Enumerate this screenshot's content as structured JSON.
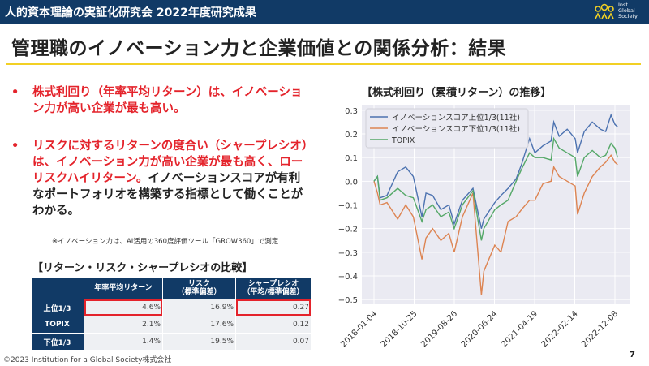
{
  "header": {
    "title": "人的資本理論の実証化研究会 2022年度研究成果",
    "logo_text": [
      "Inst.",
      "Global",
      "Society"
    ]
  },
  "slide": {
    "title": "管理職のイノベーション力と企業価値との関係分析：結果",
    "page_number": "7"
  },
  "bullets": [
    {
      "red": "株式利回り（年率平均リターン）は、イノベーション力が高い企業が最も高い。",
      "black": ""
    },
    {
      "red": "リスクに対するリターンの度合い（シャープレシオ）は、イノベーション力が高い企業が最も高く、ローリスクハイリターン。",
      "black": "イノベーションスコアが有利なポートフォリオを構築する指標として働くことがわかる。"
    }
  ],
  "bullet_marker": "•",
  "note": "※イノベーション力は、AI活用の360度評価ツール「GROW360」で測定",
  "table": {
    "title": "【リターン・リスク・シャープレシオの比較】",
    "headers": [
      "",
      "年率平均リターン",
      "リスク\n（標準偏差）",
      "シャープレシオ\n（平均/標準偏差）"
    ],
    "rows": [
      [
        "上位1/3",
        "4.6%",
        "16.9%",
        "0.27"
      ],
      [
        "TOPIX",
        "2.1%",
        "17.6%",
        "0.12"
      ],
      [
        "下位1/3",
        "1.4%",
        "19.5%",
        "0.07"
      ]
    ],
    "highlight_color": "#e4232b"
  },
  "footer": "©2023  Institution for a Global Society株式会社",
  "chart_data": {
    "type": "line",
    "title": "【株式利回り（累積リターン）の推移】",
    "ylim": [
      -0.52,
      0.32
    ],
    "yticks": [
      0.3,
      0.2,
      0.1,
      0.0,
      -0.1,
      -0.2,
      -0.3,
      -0.4,
      -0.5
    ],
    "ytick_labels": [
      "0.3",
      "0.2",
      "0.1",
      "0.0",
      "−0.1",
      "−0.2",
      "−0.3",
      "−0.4",
      "−0.5"
    ],
    "xticks": [
      "2018-01-04",
      "2018-10-25",
      "2019-08-26",
      "2020-06-24",
      "2021-04-19",
      "2022-02-14",
      "2022-12-08"
    ],
    "grid": true,
    "background": "#eaeaf2",
    "legend_position": "top-left",
    "x": [
      "2018-01-04",
      "2018-01-30",
      "2018-02-19",
      "2018-04-11",
      "2018-06-30",
      "2018-08-29",
      "2018-10-25",
      "2018-12-28",
      "2019-01-27",
      "2019-03-18",
      "2019-05-18",
      "2019-07-17",
      "2019-08-26",
      "2019-10-26",
      "2020-01-13",
      "2020-03-16",
      "2020-04-03",
      "2020-06-24",
      "2020-08-09",
      "2020-10-01",
      "2020-11-30",
      "2021-01-09",
      "2021-03-11",
      "2021-04-19",
      "2021-06-19",
      "2021-08-18",
      "2021-09-07",
      "2021-10-18",
      "2021-12-17",
      "2022-02-14",
      "2022-03-04",
      "2022-04-23",
      "2022-06-22",
      "2022-08-21",
      "2022-09-30",
      "2022-11-09",
      "2022-12-08",
      "2022-12-28"
    ],
    "series": [
      {
        "name": "イノベーションスコア上位1/3(11社)",
        "color": "#4c72b0",
        "values": [
          0.0,
          0.02,
          -0.07,
          -0.06,
          0.04,
          0.06,
          0.02,
          -0.15,
          -0.05,
          -0.06,
          -0.12,
          -0.1,
          -0.18,
          -0.08,
          -0.03,
          -0.2,
          -0.16,
          -0.09,
          -0.06,
          -0.03,
          0.01,
          0.07,
          0.18,
          0.12,
          0.15,
          0.17,
          0.25,
          0.19,
          0.22,
          0.18,
          0.12,
          0.21,
          0.25,
          0.22,
          0.21,
          0.28,
          0.24,
          0.23
        ]
      },
      {
        "name": "イノベーションスコア下位1/3(11社)",
        "color": "#dd8452",
        "values": [
          0.0,
          -0.05,
          -0.1,
          -0.09,
          -0.16,
          -0.1,
          -0.15,
          -0.33,
          -0.24,
          -0.2,
          -0.25,
          -0.22,
          -0.3,
          -0.15,
          -0.05,
          -0.48,
          -0.38,
          -0.27,
          -0.3,
          -0.17,
          -0.15,
          -0.12,
          -0.08,
          -0.08,
          -0.01,
          0.0,
          0.06,
          0.02,
          0.0,
          -0.02,
          -0.14,
          -0.05,
          0.02,
          0.06,
          0.08,
          0.11,
          0.08,
          0.07
        ]
      },
      {
        "name": "TOPIX",
        "color": "#55a868",
        "values": [
          0.0,
          0.02,
          -0.08,
          -0.07,
          -0.03,
          -0.06,
          -0.07,
          -0.17,
          -0.12,
          -0.1,
          -0.15,
          -0.13,
          -0.2,
          -0.1,
          -0.04,
          -0.25,
          -0.2,
          -0.12,
          -0.1,
          -0.08,
          0.0,
          0.05,
          0.12,
          0.1,
          0.1,
          0.09,
          0.18,
          0.14,
          0.12,
          0.1,
          0.02,
          0.1,
          0.13,
          0.1,
          0.11,
          0.16,
          0.14,
          0.1
        ]
      }
    ]
  }
}
